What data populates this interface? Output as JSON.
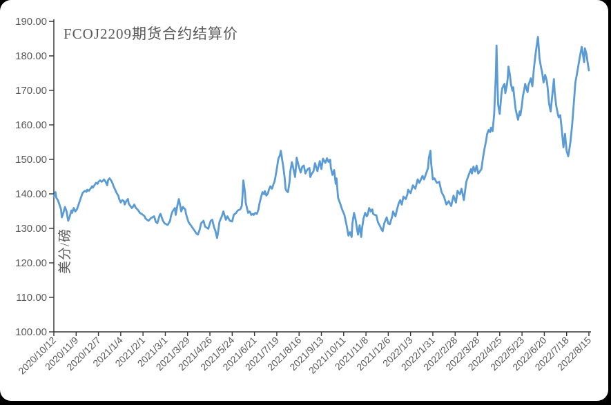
{
  "chart": {
    "title": "FCOJ2209期货合约结算价",
    "colors": {
      "line": "#5B9BD5",
      "axis": "#333333",
      "text": "#595959",
      "card_background": "#ffffff",
      "page_background": "#000000"
    }
  },
  "chart_data": {
    "type": "line",
    "title": "FCOJ2209期货合约结算价",
    "ylabel": "美分/磅",
    "xlabel": "",
    "ylim": [
      100,
      190
    ],
    "y_step": 10,
    "grid": false,
    "legend": "none",
    "y_tick_labels": [
      "190.00",
      "180.00",
      "170.00",
      "160.00",
      "150.00",
      "140.00",
      "130.00",
      "120.00",
      "110.00",
      "100.00"
    ],
    "x_tick_labels": [
      "2020/10/12",
      "2020/11/9",
      "2020/12/7",
      "2021/1/4",
      "2021/2/1",
      "2021/3/1",
      "2021/3/29",
      "2021/4/26",
      "2021/5/24",
      "2021/6/21",
      "2021/7/19",
      "2021/8/16",
      "2021/9/13",
      "2021/10/11",
      "2021/11/8",
      "2021/12/6",
      "2022/1/3",
      "2022/1/31",
      "2022/2/28",
      "2022/3/28",
      "2022/4/25",
      "2022/5/23",
      "2022/6/20",
      "2022/7/18",
      "2022/8/15"
    ],
    "x_unit": "days since 2020/10/12",
    "x_range": [
      0,
      672
    ],
    "x_tick_interval_days": 28,
    "points": [
      [
        0,
        139.2
      ],
      [
        1,
        139.8
      ],
      [
        2,
        140.5
      ],
      [
        3,
        138.9
      ],
      [
        5,
        138.2
      ],
      [
        7,
        136.9
      ],
      [
        9,
        135.5
      ],
      [
        10,
        133.2
      ],
      [
        12,
        134.5
      ],
      [
        14,
        136.2
      ],
      [
        16,
        134.9
      ],
      [
        17,
        133.5
      ],
      [
        18,
        132.2
      ],
      [
        20,
        133.5
      ],
      [
        22,
        135.2
      ],
      [
        23,
        134.5
      ],
      [
        25,
        135.9
      ],
      [
        27,
        134.9
      ],
      [
        29,
        135.5
      ],
      [
        30,
        136.2
      ],
      [
        32,
        137.5
      ],
      [
        34,
        138.9
      ],
      [
        36,
        140.2
      ],
      [
        37,
        140.5
      ],
      [
        39,
        140.9
      ],
      [
        41,
        140.6
      ],
      [
        42,
        141.2
      ],
      [
        44,
        140.9
      ],
      [
        46,
        141.5
      ],
      [
        48,
        142.2
      ],
      [
        49,
        141.8
      ],
      [
        51,
        142.5
      ],
      [
        53,
        143.2
      ],
      [
        55,
        142.9
      ],
      [
        56,
        143.5
      ],
      [
        58,
        143.9
      ],
      [
        60,
        143.5
      ],
      [
        62,
        143.9
      ],
      [
        63,
        144.2
      ],
      [
        65,
        143.5
      ],
      [
        67,
        142.5
      ],
      [
        68,
        143.9
      ],
      [
        70,
        144.5
      ],
      [
        72,
        143.9
      ],
      [
        74,
        142.9
      ],
      [
        75,
        142.2
      ],
      [
        77,
        141.2
      ],
      [
        79,
        140.2
      ],
      [
        81,
        139.5
      ],
      [
        82,
        138.5
      ],
      [
        84,
        137.5
      ],
      [
        86,
        138.2
      ],
      [
        88,
        137.9
      ],
      [
        89,
        136.9
      ],
      [
        91,
        137.9
      ],
      [
        93,
        138.5
      ],
      [
        94,
        137.2
      ],
      [
        96,
        136.5
      ],
      [
        98,
        135.9
      ],
      [
        100,
        136.5
      ],
      [
        101,
        136.9
      ],
      [
        103,
        135.9
      ],
      [
        105,
        135.5
      ],
      [
        107,
        134.9
      ],
      [
        108,
        134.5
      ],
      [
        110,
        134.2
      ],
      [
        112,
        133.9
      ],
      [
        114,
        133.5
      ],
      [
        115,
        132.9
      ],
      [
        117,
        132.5
      ],
      [
        119,
        132.2
      ],
      [
        122,
        133.0
      ],
      [
        126,
        133.5
      ],
      [
        128,
        131.9
      ],
      [
        130,
        131.5
      ],
      [
        133,
        133.9
      ],
      [
        134,
        134.2
      ],
      [
        137,
        132.2
      ],
      [
        139,
        131.5
      ],
      [
        141,
        131.2
      ],
      [
        143,
        131.0
      ],
      [
        146,
        132.2
      ],
      [
        147,
        133.5
      ],
      [
        149,
        134.9
      ],
      [
        152,
        135.9
      ],
      [
        153,
        133.9
      ],
      [
        155,
        136.5
      ],
      [
        157,
        138.5
      ],
      [
        159,
        136.2
      ],
      [
        160,
        134.9
      ],
      [
        162,
        136.2
      ],
      [
        165,
        135.5
      ],
      [
        166,
        134.2
      ],
      [
        169,
        131.9
      ],
      [
        171,
        131.2
      ],
      [
        172,
        130.9
      ],
      [
        175,
        129.9
      ],
      [
        178,
        128.9
      ],
      [
        179,
        128.5
      ],
      [
        181,
        128.2
      ],
      [
        183,
        129.5
      ],
      [
        185,
        131.5
      ],
      [
        188,
        132.2
      ],
      [
        190,
        130.5
      ],
      [
        192,
        130.2
      ],
      [
        194,
        129.9
      ],
      [
        197,
        132.2
      ],
      [
        199,
        132.5
      ],
      [
        201,
        130.5
      ],
      [
        203,
        129.2
      ],
      [
        205,
        127.2
      ],
      [
        206,
        128.5
      ],
      [
        208,
        131.9
      ],
      [
        211,
        133.5
      ],
      [
        213,
        134.9
      ],
      [
        216,
        132.5
      ],
      [
        218,
        133.5
      ],
      [
        221,
        132.2
      ],
      [
        224,
        132.0
      ],
      [
        226,
        133.9
      ],
      [
        229,
        134.5
      ],
      [
        231,
        135.2
      ],
      [
        234,
        135.5
      ],
      [
        236,
        136.5
      ],
      [
        237,
        139.5
      ],
      [
        238,
        143.9
      ],
      [
        240,
        140.5
      ],
      [
        241,
        137.5
      ],
      [
        243,
        135.5
      ],
      [
        244,
        134.5
      ],
      [
        246,
        134.9
      ],
      [
        248,
        133.9
      ],
      [
        250,
        134.2
      ],
      [
        251,
        133.9
      ],
      [
        253,
        134.5
      ],
      [
        255,
        134.2
      ],
      [
        257,
        135.5
      ],
      [
        258,
        136.9
      ],
      [
        260,
        138.9
      ],
      [
        262,
        140.5
      ],
      [
        264,
        139.9
      ],
      [
        265,
        140.8
      ],
      [
        267,
        139.5
      ],
      [
        269,
        140.2
      ],
      [
        270,
        141.2
      ],
      [
        272,
        142.2
      ],
      [
        274,
        141.5
      ],
      [
        276,
        142.9
      ],
      [
        277,
        143.5
      ],
      [
        278,
        144.5
      ],
      [
        280,
        147.2
      ],
      [
        282,
        150.2
      ],
      [
        284,
        151.2
      ],
      [
        285,
        152.5
      ],
      [
        286,
        151.2
      ],
      [
        287,
        149.5
      ],
      [
        288,
        148.2
      ],
      [
        290,
        144.5
      ],
      [
        291,
        141.5
      ],
      [
        292,
        140.9
      ],
      [
        294,
        140.5
      ],
      [
        296,
        143.5
      ],
      [
        297,
        146.5
      ],
      [
        299,
        149.2
      ],
      [
        301,
        147.2
      ],
      [
        303,
        144.9
      ],
      [
        304,
        147.5
      ],
      [
        305,
        150.5
      ],
      [
        307,
        148.5
      ],
      [
        309,
        146.9
      ],
      [
        310,
        146.2
      ],
      [
        312,
        147.9
      ],
      [
        314,
        148.2
      ],
      [
        316,
        145.9
      ],
      [
        317,
        146.5
      ],
      [
        319,
        147.2
      ],
      [
        321,
        147.5
      ],
      [
        322,
        144.9
      ],
      [
        324,
        145.9
      ],
      [
        326,
        146.5
      ],
      [
        328,
        148.9
      ],
      [
        331,
        146.6
      ],
      [
        334,
        149.5
      ],
      [
        336,
        147.2
      ],
      [
        338,
        150.2
      ],
      [
        341,
        149.0
      ],
      [
        343,
        150.3
      ],
      [
        345,
        149.3
      ],
      [
        347,
        149.9
      ],
      [
        348,
        147.5
      ],
      [
        350,
        145.5
      ],
      [
        352,
        146.9
      ],
      [
        354,
        142.9
      ],
      [
        355,
        144.5
      ],
      [
        357,
        138.9
      ],
      [
        360,
        136.9
      ],
      [
        362,
        135.5
      ],
      [
        365,
        133.9
      ],
      [
        368,
        130.5
      ],
      [
        370,
        127.9
      ],
      [
        372,
        128.9
      ],
      [
        374,
        127.5
      ],
      [
        375,
        131.5
      ],
      [
        377,
        134.5
      ],
      [
        379,
        132.5
      ],
      [
        381,
        129.5
      ],
      [
        382,
        128.2
      ],
      [
        384,
        130.9
      ],
      [
        386,
        127.5
      ],
      [
        387,
        129.9
      ],
      [
        389,
        132.9
      ],
      [
        391,
        134.5
      ],
      [
        393,
        133.5
      ],
      [
        394,
        133.9
      ],
      [
        396,
        135.9
      ],
      [
        398,
        134.9
      ],
      [
        400,
        135.5
      ],
      [
        401,
        134.2
      ],
      [
        403,
        133.9
      ],
      [
        405,
        133.8
      ],
      [
        407,
        131.8
      ],
      [
        410,
        130.5
      ],
      [
        412,
        129.5
      ],
      [
        413,
        129.2
      ],
      [
        415,
        131.5
      ],
      [
        418,
        133.2
      ],
      [
        420,
        131.4
      ],
      [
        422,
        131.2
      ],
      [
        425,
        133.5
      ],
      [
        426,
        134.9
      ],
      [
        429,
        133.5
      ],
      [
        431,
        135.5
      ],
      [
        433,
        137.2
      ],
      [
        435,
        138.2
      ],
      [
        437,
        136.9
      ],
      [
        439,
        139.2
      ],
      [
        442,
        138.5
      ],
      [
        444,
        139.9
      ],
      [
        445,
        141.2
      ],
      [
        448,
        140.2
      ],
      [
        451,
        142.5
      ],
      [
        454,
        141.5
      ],
      [
        457,
        144.2
      ],
      [
        459,
        143.2
      ],
      [
        463,
        145.2
      ],
      [
        465,
        144.2
      ],
      [
        468,
        146.2
      ],
      [
        470,
        147.5
      ],
      [
        471,
        150.5
      ],
      [
        473,
        152.5
      ],
      [
        474,
        148.5
      ],
      [
        476,
        144.2
      ],
      [
        478,
        144.5
      ],
      [
        481,
        143.2
      ],
      [
        484,
        143.5
      ],
      [
        487,
        140.5
      ],
      [
        490,
        139.2
      ],
      [
        493,
        136.9
      ],
      [
        496,
        137.9
      ],
      [
        499,
        136.5
      ],
      [
        502,
        139.5
      ],
      [
        505,
        137.5
      ],
      [
        507,
        140.9
      ],
      [
        510,
        139.9
      ],
      [
        512,
        141.5
      ],
      [
        515,
        138.2
      ],
      [
        518,
        143.5
      ],
      [
        521,
        145.5
      ],
      [
        524,
        147.2
      ],
      [
        525,
        145.9
      ],
      [
        527,
        147.9
      ],
      [
        529,
        146.5
      ],
      [
        531,
        148.2
      ],
      [
        533,
        145.9
      ],
      [
        535,
        146.5
      ],
      [
        537,
        147.2
      ],
      [
        539,
        150.5
      ],
      [
        541,
        153.2
      ],
      [
        543,
        155.5
      ],
      [
        544,
        157.2
      ],
      [
        546,
        158.5
      ],
      [
        548,
        157.9
      ],
      [
        549,
        159.2
      ],
      [
        551,
        158.2
      ],
      [
        552,
        160.5
      ],
      [
        553,
        163.2
      ],
      [
        555,
        174.0
      ],
      [
        556,
        183.0
      ],
      [
        557,
        173.2
      ],
      [
        558,
        165.9
      ],
      [
        560,
        163.2
      ],
      [
        562,
        168.5
      ],
      [
        563,
        170.5
      ],
      [
        565,
        171.5
      ],
      [
        566,
        171.9
      ],
      [
        567,
        169.2
      ],
      [
        569,
        171.5
      ],
      [
        570,
        173.5
      ],
      [
        571,
        176.9
      ],
      [
        573,
        174.2
      ],
      [
        574,
        171.9
      ],
      [
        576,
        169.9
      ],
      [
        577,
        170.9
      ],
      [
        578,
        168.5
      ],
      [
        580,
        164.5
      ],
      [
        582,
        162.5
      ],
      [
        583,
        161.5
      ],
      [
        585,
        163.9
      ],
      [
        586,
        162.8
      ],
      [
        588,
        165.9
      ],
      [
        589,
        168.2
      ],
      [
        591,
        170.5
      ],
      [
        592,
        171.9
      ],
      [
        594,
        170.2
      ],
      [
        595,
        169.5
      ],
      [
        596,
        171.5
      ],
      [
        598,
        172.8
      ],
      [
        599,
        173.5
      ],
      [
        601,
        171.2
      ],
      [
        603,
        176.5
      ],
      [
        605,
        180.5
      ],
      [
        607,
        183.8
      ],
      [
        608,
        185.5
      ],
      [
        610,
        179.2
      ],
      [
        612,
        176.5
      ],
      [
        613,
        175.5
      ],
      [
        615,
        172.3
      ],
      [
        617,
        174.5
      ],
      [
        619,
        172.8
      ],
      [
        620,
        171.2
      ],
      [
        622,
        166.2
      ],
      [
        624,
        163.9
      ],
      [
        626,
        168.5
      ],
      [
        628,
        173.3
      ],
      [
        629,
        169.5
      ],
      [
        631,
        165.5
      ],
      [
        633,
        163.2
      ],
      [
        634,
        162.2
      ],
      [
        636,
        162.8
      ],
      [
        638,
        158.5
      ],
      [
        640,
        153.5
      ],
      [
        642,
        157.4
      ],
      [
        644,
        152.5
      ],
      [
        646,
        150.9
      ],
      [
        647,
        152.2
      ],
      [
        649,
        155.5
      ],
      [
        651,
        160.2
      ],
      [
        653,
        166.2
      ],
      [
        655,
        172.3
      ],
      [
        657,
        174.8
      ],
      [
        659,
        177.5
      ],
      [
        661,
        180.2
      ],
      [
        663,
        182.6
      ],
      [
        666,
        178.2
      ],
      [
        667,
        182.2
      ],
      [
        669,
        180.5
      ],
      [
        671,
        177.2
      ],
      [
        672,
        175.8
      ]
    ]
  }
}
